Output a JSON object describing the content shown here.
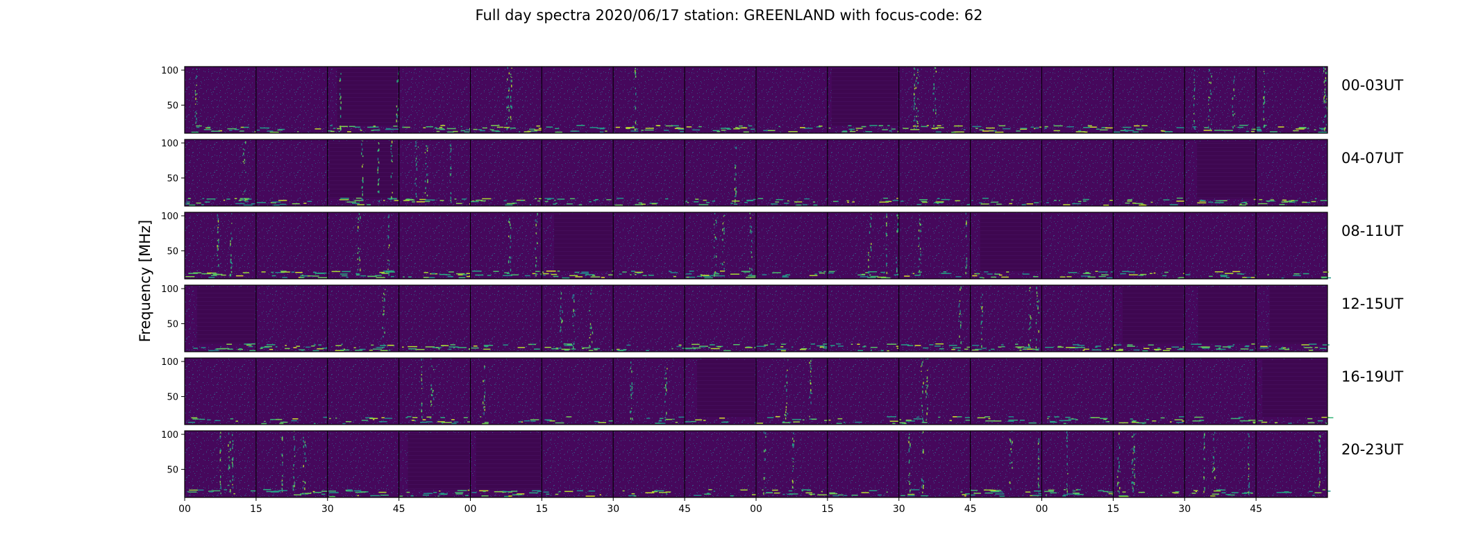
{
  "chart_data": {
    "type": "heatmap",
    "title": "Full day spectra 2020/06/17 station: GREENLAND with focus-code: 62",
    "ylabel": "Frequency [MHz]",
    "xlabel": "",
    "yticks": [
      50,
      100
    ],
    "ylim": [
      10,
      105
    ],
    "colormap": "viridis",
    "colors": {
      "background": "#440154",
      "low": "#46085c",
      "mid": "#2a788e",
      "high": "#22a884",
      "peak": "#fde725"
    },
    "x_tick_labels": [
      "00",
      "15",
      "30",
      "45",
      "00",
      "15",
      "30",
      "45",
      "00",
      "15",
      "30",
      "45",
      "00",
      "15",
      "30",
      "45"
    ],
    "panels_per_row": 16,
    "panel_duration_min": 15,
    "rows": [
      {
        "label": "00-03UT"
      },
      {
        "label": "04-07UT"
      },
      {
        "label": "08-11UT"
      },
      {
        "label": "12-15UT"
      },
      {
        "label": "16-19UT"
      },
      {
        "label": "20-23UT"
      }
    ]
  }
}
